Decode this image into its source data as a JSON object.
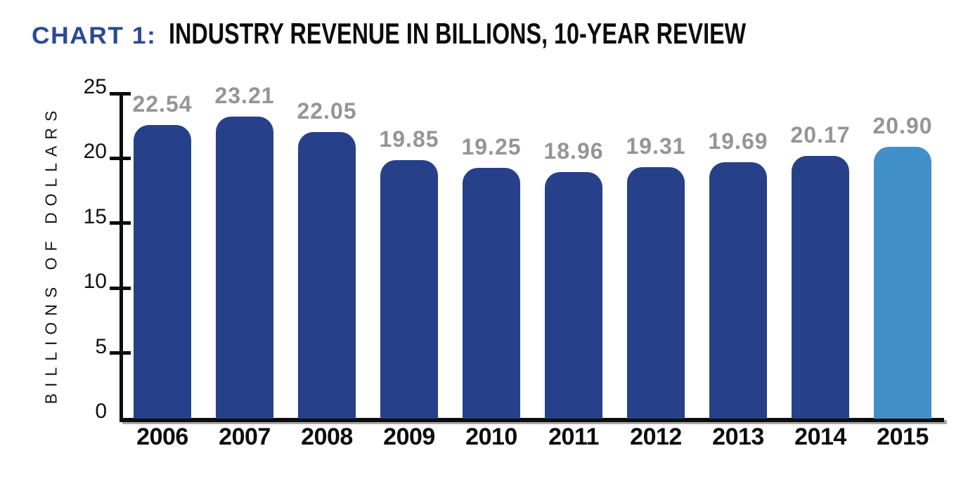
{
  "header": {
    "prefix": "CHART 1:",
    "title": "INDUSTRY REVENUE IN BILLIONS, 10-YEAR REVIEW"
  },
  "chart_data": {
    "type": "bar",
    "title": "CHART 1: INDUSTRY REVENUE IN BILLIONS, 10-YEAR REVIEW",
    "categories": [
      "2006",
      "2007",
      "2008",
      "2009",
      "2010",
      "2011",
      "2012",
      "2013",
      "2014",
      "2015"
    ],
    "values": [
      22.54,
      23.21,
      22.05,
      19.85,
      19.25,
      18.96,
      19.31,
      19.69,
      20.17,
      20.9
    ],
    "value_labels": [
      "22.54",
      "23.21",
      "22.05",
      "19.85",
      "19.25",
      "18.96",
      "19.31",
      "19.69",
      "20.17",
      "20.90"
    ],
    "xlabel": "",
    "ylabel": "BILLIONS OF DOLLARS",
    "ylim": [
      0,
      25
    ],
    "yticks": [
      0,
      5,
      10,
      15,
      20,
      25
    ],
    "grid": false,
    "legend": "none",
    "bar_color": "#26418a",
    "highlight_index": 9,
    "highlight_color": "#4290c9",
    "value_label_color": "#959595",
    "title_accent_color": "#2a4a97",
    "axis_color": "#0d0d0d"
  }
}
